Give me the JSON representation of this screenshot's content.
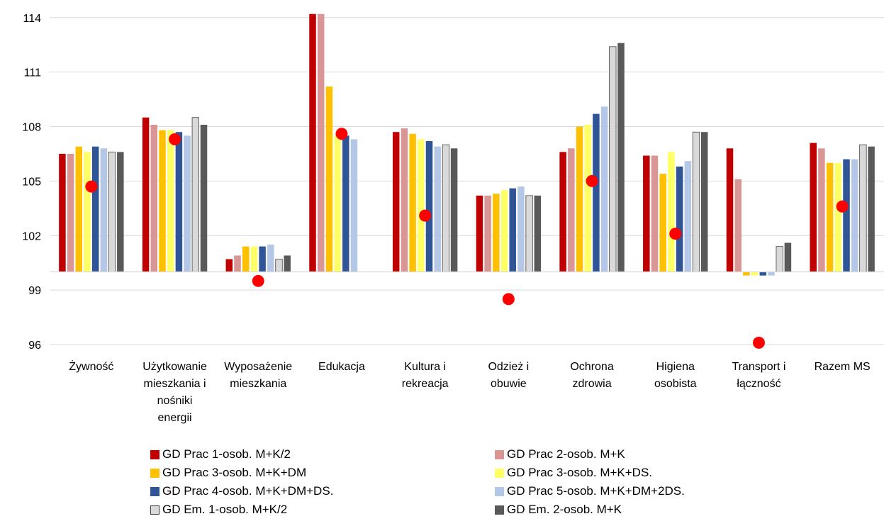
{
  "chart_data": {
    "type": "bar",
    "title": "",
    "xlabel": "",
    "ylabel": "",
    "ylim": [
      96,
      114.5
    ],
    "baseline": 100,
    "yticks": [
      96,
      99,
      102,
      105,
      108,
      111,
      114
    ],
    "ytick_labels": [
      "96",
      "99",
      "102",
      "105",
      "108",
      "111",
      "114"
    ],
    "grid": true,
    "legend_position": "bottom",
    "categories": [
      [
        "Żywność"
      ],
      [
        "Użytkowanie",
        "mieszkania i",
        "nośniki",
        "energii"
      ],
      [
        "Wyposażenie",
        "mieszkania"
      ],
      [
        "Edukacja"
      ],
      [
        "Kultura i",
        "rekreacja"
      ],
      [
        "Odzież i",
        "obuwie"
      ],
      [
        "Ochrona",
        "zdrowia"
      ],
      [
        "Higiena",
        "osobista"
      ],
      [
        "Transport i",
        "łączność"
      ],
      [
        "Razem MS"
      ]
    ],
    "series": [
      {
        "name": "GD Prac 1-osob. M+K/2",
        "color": "#C00000",
        "values": [
          106.5,
          108.5,
          100.7,
          114.2,
          107.7,
          104.2,
          106.6,
          106.4,
          106.8,
          107.1
        ]
      },
      {
        "name": "GD Prac 2-osob. M+K",
        "color": "#DA9694",
        "values": [
          106.5,
          108.1,
          100.9,
          114.2,
          107.9,
          104.2,
          106.8,
          106.4,
          105.1,
          106.8
        ]
      },
      {
        "name": "GD Prac 3-osob. M+K+DM",
        "color": "#FFC000",
        "values": [
          106.9,
          107.8,
          101.4,
          110.2,
          107.6,
          104.3,
          108.0,
          105.4,
          99.8,
          106.0
        ]
      },
      {
        "name": "GD Prac 3-osob. M+K+DS.",
        "color": "#FFFF66",
        "values": [
          106.6,
          107.8,
          101.4,
          107.5,
          107.3,
          104.5,
          108.1,
          106.6,
          99.8,
          106.0
        ]
      },
      {
        "name": "GD Prac 4-osob. M+K+DM+DS.",
        "color": "#2F5597",
        "values": [
          106.9,
          107.7,
          101.4,
          107.5,
          107.2,
          104.6,
          108.7,
          105.8,
          99.8,
          106.2
        ]
      },
      {
        "name": "GD Prac 5-osob. M+K+DM+2DS.",
        "color": "#B4C7E7",
        "values": [
          106.8,
          107.5,
          101.5,
          107.3,
          106.9,
          104.7,
          109.1,
          106.1,
          99.8,
          106.2
        ]
      },
      {
        "name": "GD Em. 1-osob. M+K/2",
        "color": "#D9D9D9",
        "values": [
          106.6,
          108.5,
          100.7,
          null,
          107.0,
          104.2,
          112.4,
          107.7,
          101.4,
          107.0
        ]
      },
      {
        "name": "GD Em. 2-osob. M+K",
        "color": "#595959",
        "values": [
          106.6,
          108.1,
          100.9,
          null,
          106.8,
          104.2,
          112.6,
          107.7,
          101.6,
          106.9
        ]
      }
    ],
    "markers": {
      "color": "#FF0000",
      "values": [
        104.7,
        107.3,
        99.5,
        107.6,
        103.1,
        98.5,
        105.0,
        102.1,
        96.1,
        103.6
      ]
    }
  }
}
